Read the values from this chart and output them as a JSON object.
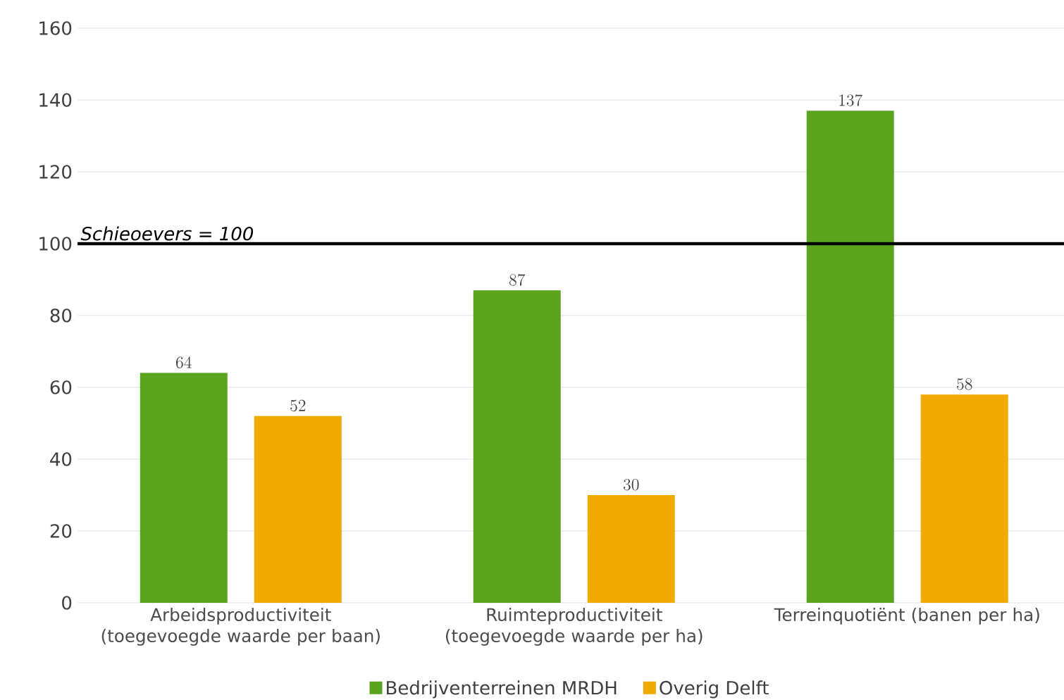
{
  "chart_data": {
    "type": "bar",
    "categories": [
      "Arbeidsproductiviteit (toegevoegde waarde per baan)",
      "Ruimteproductiviteit (toegevoegde waarde per ha)",
      "Terreinquotiënt (banen per ha)"
    ],
    "series": [
      {
        "name": "Bedrijventerreinen MRDH",
        "color": "#5ba51e",
        "values": [
          64,
          87,
          137
        ]
      },
      {
        "name": "Overig Delft",
        "color": "#f0aa00",
        "values": [
          52,
          30,
          58
        ]
      }
    ],
    "ylim": [
      0,
      160
    ],
    "yticks": [
      0,
      20,
      40,
      60,
      80,
      100,
      120,
      140,
      160
    ],
    "grid": "y",
    "legend": "bottom",
    "data_labels": true,
    "ref_lines": [
      {
        "axis": "y",
        "value": 100,
        "label": "Schieoevers = 100",
        "color": "#000000"
      }
    ]
  }
}
